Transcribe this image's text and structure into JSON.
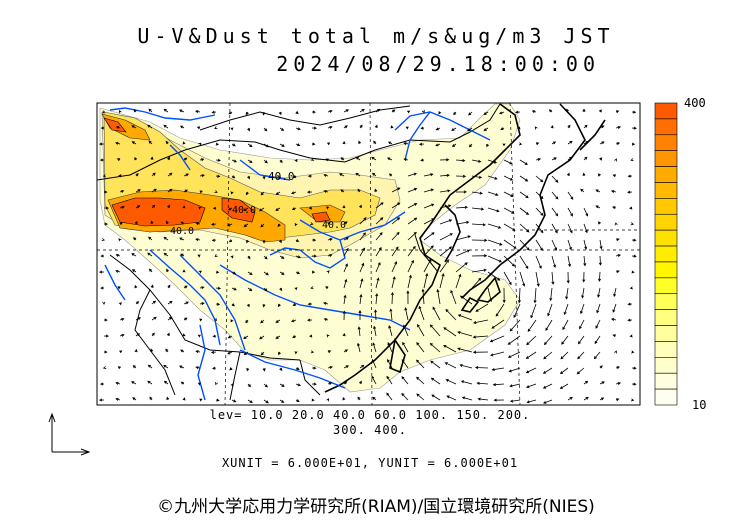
{
  "title": {
    "line1": "U-V&Dust total m/s&ug/m3 JST",
    "line2": "2024/08/29.18:00:00"
  },
  "contour_levels": {
    "line1": "lev= 10.0 20.0 40.0 60.0 100. 150. 200.",
    "line2": "300. 400.",
    "values": [
      10,
      20,
      40,
      60,
      100,
      150,
      200,
      300,
      400
    ]
  },
  "contour_annotations": [
    "40.0",
    "40.0",
    "40.0",
    "40.0"
  ],
  "units": "XUNIT = 6.000E+01, YUNIT = 6.000E+01",
  "colorbar": {
    "max_label": "400",
    "min_label": "10",
    "colors": [
      "#ff5a00",
      "#ff6e00",
      "#ff8200",
      "#ff9600",
      "#ffaa00",
      "#ffb900",
      "#ffc800",
      "#ffd400",
      "#ffe100",
      "#ffec00",
      "#fff600",
      "#ffff28",
      "#ffff5a",
      "#ffff82",
      "#ffffa0",
      "#ffffb9",
      "#ffffcc",
      "#ffffe0",
      "#fffff0"
    ]
  },
  "colors": {
    "coast": "#000000",
    "river": "#0050ff",
    "border": "#000000"
  },
  "credit": "©九州大学応用力学研究所(RIAM)/国立環境研究所(NIES)"
}
